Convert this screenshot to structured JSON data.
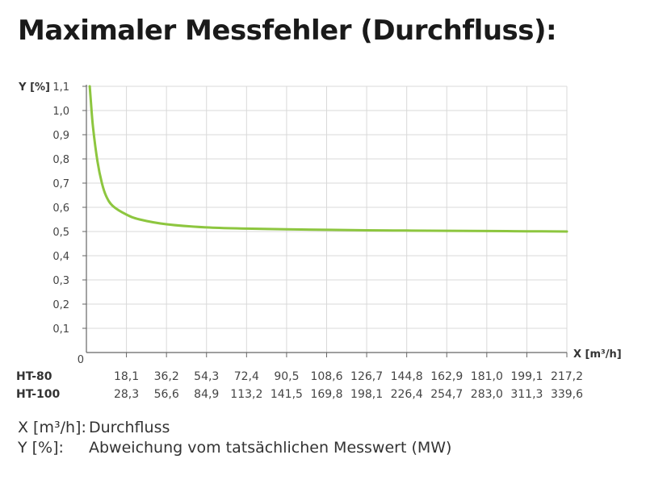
{
  "chart_data": {
    "type": "line",
    "title": "Maximaler Messfehler (Durchfluss):",
    "xlabel": "X [m³/h]",
    "ylabel": "Y [%]",
    "ylim": [
      0,
      1.1
    ],
    "y_ticks": [
      "0",
      "0,1",
      "0,2",
      "0,3",
      "0,4",
      "0,5",
      "0,6",
      "0,7",
      "0,8",
      "0,9",
      "1,0",
      "1,1"
    ],
    "x_rows": [
      {
        "name": "HT-80",
        "values": [
          "18,1",
          "36,2",
          "54,3",
          "72,4",
          "90,5",
          "108,6",
          "126,7",
          "144,8",
          "162,9",
          "181,0",
          "199,1",
          "217,2"
        ]
      },
      {
        "name": "HT-100",
        "values": [
          "28,3",
          "56,6",
          "84,9",
          "113,2",
          "141,5",
          "169,8",
          "198,1",
          "226,4",
          "254,7",
          "283,0",
          "311,3",
          "339,6"
        ]
      }
    ],
    "series": [
      {
        "name": "",
        "color": "#8dc63f",
        "x": [
          1.5,
          2,
          3,
          5,
          7,
          9,
          12,
          18.1,
          24,
          36.2,
          54.3,
          72.4,
          90.5,
          108.6,
          126.7,
          144.8,
          162.9,
          181.0,
          199.1,
          217.2
        ],
        "y": [
          1.1,
          1.04,
          0.93,
          0.79,
          0.7,
          0.645,
          0.605,
          0.57,
          0.55,
          0.53,
          0.517,
          0.512,
          0.509,
          0.507,
          0.505,
          0.504,
          0.503,
          0.502,
          0.501,
          0.5
        ]
      }
    ],
    "grid": true,
    "grid_color": "#d9d9d9"
  },
  "legend": {
    "x_key": "X [m³/h]:",
    "x_text": "Durchfluss",
    "y_key": "Y [%]:",
    "y_text": "Abweichung vom tatsächlichen Messwert (MW)"
  }
}
